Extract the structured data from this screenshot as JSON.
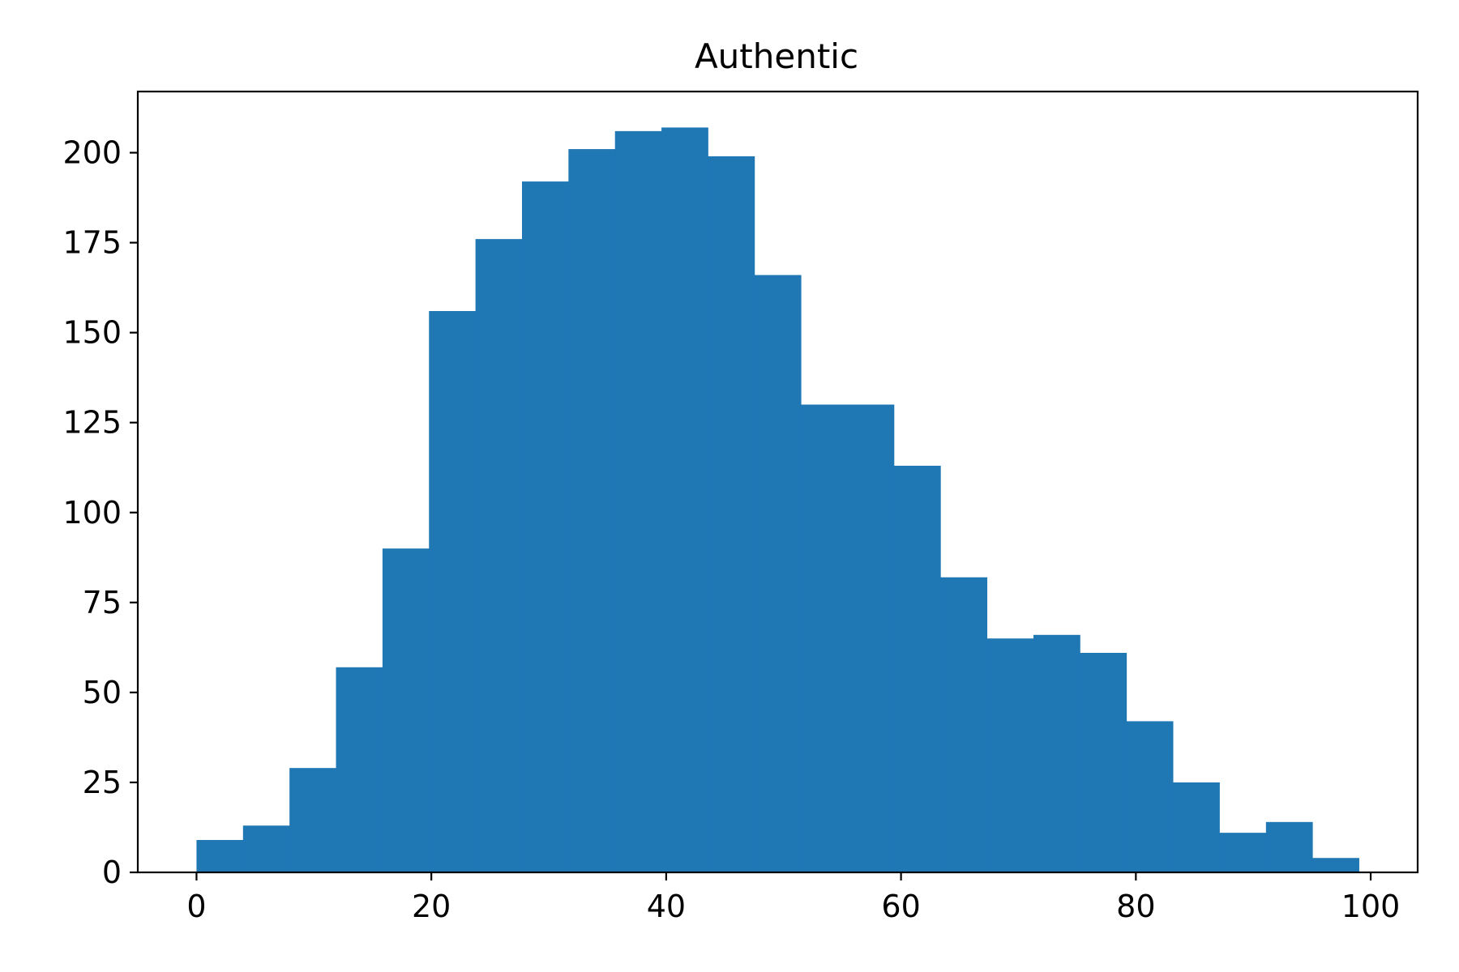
{
  "chart_data": {
    "type": "bar",
    "title": "Authentic",
    "xlabel": "",
    "ylabel": "",
    "xlim": [
      -5,
      104
    ],
    "ylim": [
      0,
      217
    ],
    "grid": false,
    "color": "#1f77b4",
    "bin_edges": [
      0,
      3.96,
      7.92,
      11.88,
      15.84,
      19.8,
      23.76,
      27.72,
      31.68,
      35.64,
      39.6,
      43.56,
      47.52,
      51.48,
      55.44,
      59.4,
      63.36,
      67.32,
      71.28,
      75.24,
      79.2,
      83.16,
      87.12,
      91.08,
      95.04,
      99
    ],
    "values": [
      9,
      13,
      29,
      57,
      90,
      156,
      176,
      192,
      201,
      206,
      207,
      199,
      166,
      130,
      130,
      113,
      82,
      65,
      66,
      61,
      42,
      25,
      11,
      14,
      4
    ],
    "x_ticks": [
      {
        "value": 0,
        "label": "0"
      },
      {
        "value": 20,
        "label": "20"
      },
      {
        "value": 40,
        "label": "40"
      },
      {
        "value": 60,
        "label": "60"
      },
      {
        "value": 80,
        "label": "80"
      },
      {
        "value": 100,
        "label": "100"
      }
    ],
    "y_ticks": [
      {
        "value": 0,
        "label": "0"
      },
      {
        "value": 25,
        "label": "25"
      },
      {
        "value": 50,
        "label": "50"
      },
      {
        "value": 75,
        "label": "75"
      },
      {
        "value": 100,
        "label": "100"
      },
      {
        "value": 125,
        "label": "125"
      },
      {
        "value": 150,
        "label": "150"
      },
      {
        "value": 175,
        "label": "175"
      },
      {
        "value": 200,
        "label": "200"
      }
    ]
  }
}
